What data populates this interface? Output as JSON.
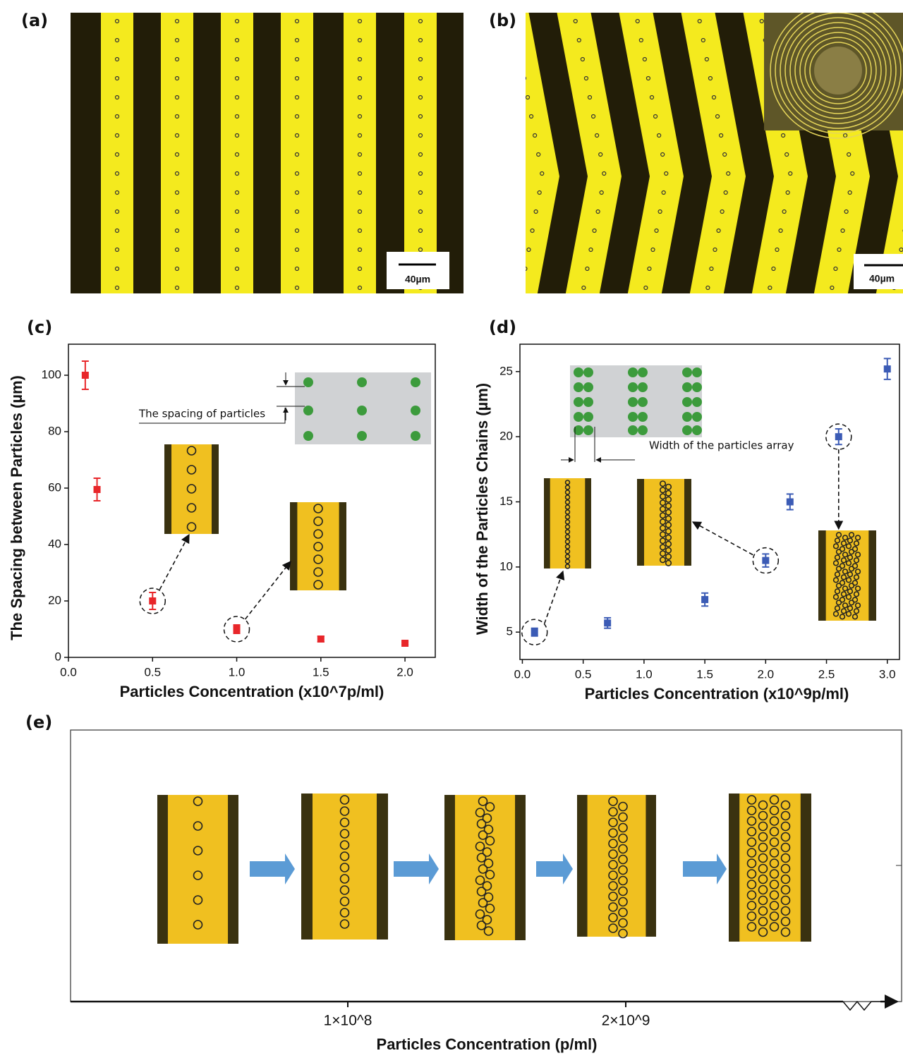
{
  "panels": {
    "a": {
      "label": "(a)",
      "scale_bar": "40µm"
    },
    "b": {
      "label": "(b)",
      "scale_bar": "40µm"
    },
    "e": {
      "label": "(e)",
      "tick_labels": [
        "1×10^8",
        "2×10^9"
      ],
      "xlabel": "Particles Concentration (p/ml)"
    }
  },
  "chart_data": [
    {
      "type": "scatter",
      "panel_label": "(c)",
      "xlabel": "Particles Concentration (x10^7p/ml)",
      "ylabel": "The Spacing between Particles (µm)",
      "annotation": "The spacing of particles",
      "x": [
        0.1,
        0.17,
        0.5,
        1.0,
        1.5,
        2.0
      ],
      "values": [
        100,
        59.5,
        20,
        10,
        6.5,
        5
      ],
      "errors": [
        5,
        4,
        3,
        1.5,
        1,
        0.5
      ],
      "color": "#e8262a",
      "xlim": [
        0,
        2.18
      ],
      "ylim": [
        0,
        111
      ],
      "xticks": [
        {
          "value": 0,
          "label": "0.0"
        },
        {
          "value": 0.5,
          "label": "0.5"
        },
        {
          "value": 1,
          "label": "1.0"
        },
        {
          "value": 1.5,
          "label": "1.5"
        },
        {
          "value": 2,
          "label": "2.0"
        }
      ],
      "yticks": [
        0,
        20,
        40,
        60,
        80,
        100
      ]
    },
    {
      "type": "scatter",
      "panel_label": "(d)",
      "xlabel": "Particles Concentration (x10^9p/ml)",
      "ylabel": "Width of the Particles Chains (µm)",
      "annotation": "Width of the particles array",
      "x": [
        0.1,
        0.7,
        1.5,
        2.0,
        2.2,
        2.6,
        3.0
      ],
      "values": [
        5,
        5.7,
        7.5,
        10.5,
        15,
        20,
        25.2
      ],
      "errors": [
        0.3,
        0.4,
        0.5,
        0.5,
        0.6,
        0.6,
        0.8
      ],
      "color": "#3b5bb5",
      "xlim": [
        -0.02,
        3.1
      ],
      "ylim": [
        2.9,
        27.1
      ],
      "xticks": [
        {
          "value": 0,
          "label": "0.0"
        },
        {
          "value": 0.5,
          "label": "0.5"
        },
        {
          "value": 1,
          "label": "1.0"
        },
        {
          "value": 1.5,
          "label": "1.5"
        },
        {
          "value": 2,
          "label": "2.0"
        },
        {
          "value": 2.5,
          "label": "2.5"
        },
        {
          "value": 3,
          "label": "3.0"
        }
      ],
      "yticks": [
        5,
        10,
        15,
        20,
        25
      ]
    }
  ]
}
